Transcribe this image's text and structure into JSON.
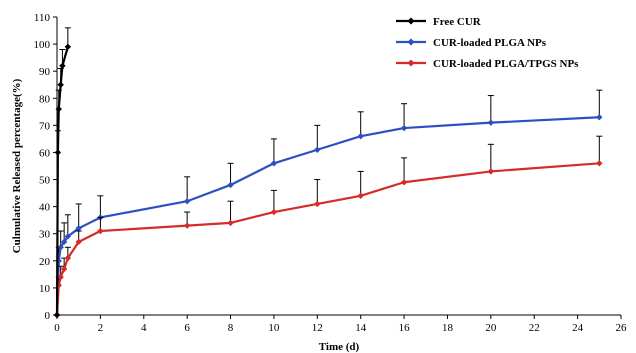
{
  "chart_data": {
    "type": "line",
    "xlabel": "Time (d)",
    "ylabel": "Culmulative Released percentage(%)",
    "xlim": [
      0,
      26
    ],
    "ylim": [
      0,
      110
    ],
    "x_ticks": [
      0,
      2,
      4,
      6,
      8,
      10,
      12,
      14,
      16,
      18,
      20,
      22,
      24,
      26
    ],
    "y_ticks": [
      0,
      10,
      20,
      30,
      40,
      50,
      60,
      70,
      80,
      90,
      100,
      110
    ],
    "grid": false,
    "legend_position": "top-right",
    "series": [
      {
        "name": "Free CUR",
        "color": "#000000",
        "points": [
          [
            0,
            0
          ],
          [
            0.04,
            60
          ],
          [
            0.08,
            76
          ],
          [
            0.17,
            85
          ],
          [
            0.25,
            92
          ],
          [
            0.5,
            99
          ]
        ],
        "error_up": [
          0,
          8,
          7,
          6,
          6,
          7
        ]
      },
      {
        "name": "CUR-loaded PLGA NPs",
        "color": "#2e4fc2",
        "points": [
          [
            0,
            0
          ],
          [
            0.08,
            20
          ],
          [
            0.17,
            25
          ],
          [
            0.33,
            27
          ],
          [
            0.5,
            29
          ],
          [
            1,
            32
          ],
          [
            2,
            36
          ],
          [
            6,
            42
          ],
          [
            8,
            48
          ],
          [
            10,
            56
          ],
          [
            12,
            61
          ],
          [
            14,
            66
          ],
          [
            16,
            69
          ],
          [
            20,
            71
          ],
          [
            25,
            73
          ]
        ],
        "error_up": [
          0,
          5,
          6,
          7,
          8,
          9,
          8,
          9,
          8,
          9,
          9,
          9,
          9,
          10,
          10
        ]
      },
      {
        "name": "CUR-loaded PLGA/TPGS NPs",
        "color": "#d52b2b",
        "points": [
          [
            0,
            0
          ],
          [
            0.08,
            11
          ],
          [
            0.17,
            14
          ],
          [
            0.33,
            17
          ],
          [
            0.5,
            21
          ],
          [
            1,
            27
          ],
          [
            2,
            31
          ],
          [
            6,
            33
          ],
          [
            8,
            34
          ],
          [
            10,
            38
          ],
          [
            12,
            41
          ],
          [
            14,
            44
          ],
          [
            16,
            49
          ],
          [
            20,
            53
          ],
          [
            25,
            56
          ]
        ],
        "error_up": [
          0,
          3,
          4,
          4,
          4,
          4,
          5,
          5,
          8,
          8,
          9,
          9,
          9,
          10,
          10
        ]
      }
    ]
  }
}
